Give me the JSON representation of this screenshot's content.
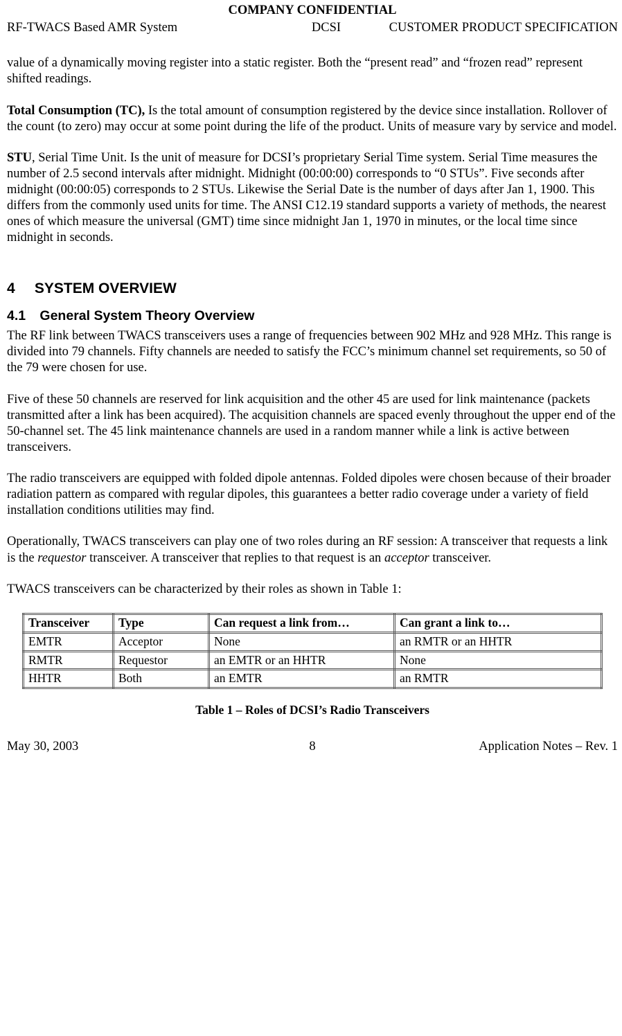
{
  "header": {
    "confidential": "COMPANY CONFIDENTIAL",
    "left": "RF-TWACS Based AMR System",
    "mid": "DCSI",
    "right": "CUSTOMER PRODUCT SPECIFICATION"
  },
  "para_carryover": "value of a dynamically moving register into a static register. Both the “present read” and “frozen read” represent shifted readings.",
  "tc": {
    "lead": "Total Consumption (TC),",
    "rest": " Is the total amount of consumption registered by the device since installation. Rollover of the count (to zero) may occur at some point during the life of the product. Units of measure vary by service and model."
  },
  "stu": {
    "lead": "STU",
    "rest": ", Serial Time Unit. Is the unit of measure for DCSI’s proprietary Serial Time system. Serial Time measures the number of 2.5 second intervals after midnight. Midnight (00:00:00) corresponds to “0 STUs”. Five seconds after midnight (00:00:05) corresponds to 2 STUs. Likewise the Serial Date is the number of days after Jan 1, 1900. This differs from the commonly used units for time. The ANSI C12.19 standard supports a variety of methods, the nearest ones of which measure the universal (GMT) time since midnight Jan 1, 1970 in minutes, or the local time since midnight in seconds."
  },
  "section4": {
    "num": "4",
    "title": "SYSTEM OVERVIEW"
  },
  "section41": {
    "num": "4.1",
    "title": "General System Theory Overview"
  },
  "p41_1": "The RF link between TWACS transceivers uses a range of frequencies between 902 MHz and 928 MHz. This range is divided into 79 channels. Fifty channels are needed to satisfy the FCC’s minimum channel set requirements, so 50 of the 79 were chosen for use.",
  "p41_2": "Five of these 50 channels are reserved for link acquisition and the other 45 are used for link maintenance (packets transmitted after a link has been acquired). The acquisition channels are spaced evenly throughout the upper end of the 50-channel set. The 45 link maintenance channels are used in a random manner while a link is active between transceivers.",
  "p41_3": "The radio transceivers are equipped with folded dipole antennas. Folded dipoles were chosen because of their broader radiation pattern as compared with regular dipoles, this guarantees a better radio coverage under a variety of field installation conditions utilities may find.",
  "p41_4_pre": "Operationally, TWACS transceivers can play one of two roles during an RF session: A transceiver that requests a link is the ",
  "p41_4_req": "requestor",
  "p41_4_mid": " transceiver. A transceiver that replies to that request is an ",
  "p41_4_acc": "acceptor",
  "p41_4_post": " transceiver.",
  "p41_5": "TWACS transceivers can be characterized by their roles as shown in Table 1:",
  "table": {
    "headers": [
      "Transceiver",
      "Type",
      "Can request a link from…",
      "Can grant a link to…"
    ],
    "rows": [
      [
        "EMTR",
        "Acceptor",
        "None",
        "an RMTR or an HHTR"
      ],
      [
        "RMTR",
        "Requestor",
        "an EMTR or an HHTR",
        "None"
      ],
      [
        "HHTR",
        "Both",
        "an EMTR",
        "an RMTR"
      ]
    ],
    "caption": "Table 1 – Roles of DCSI’s Radio Transceivers"
  },
  "footer": {
    "left": "May 30, 2003",
    "mid": "8",
    "right": "Application Notes – Rev. 1"
  }
}
